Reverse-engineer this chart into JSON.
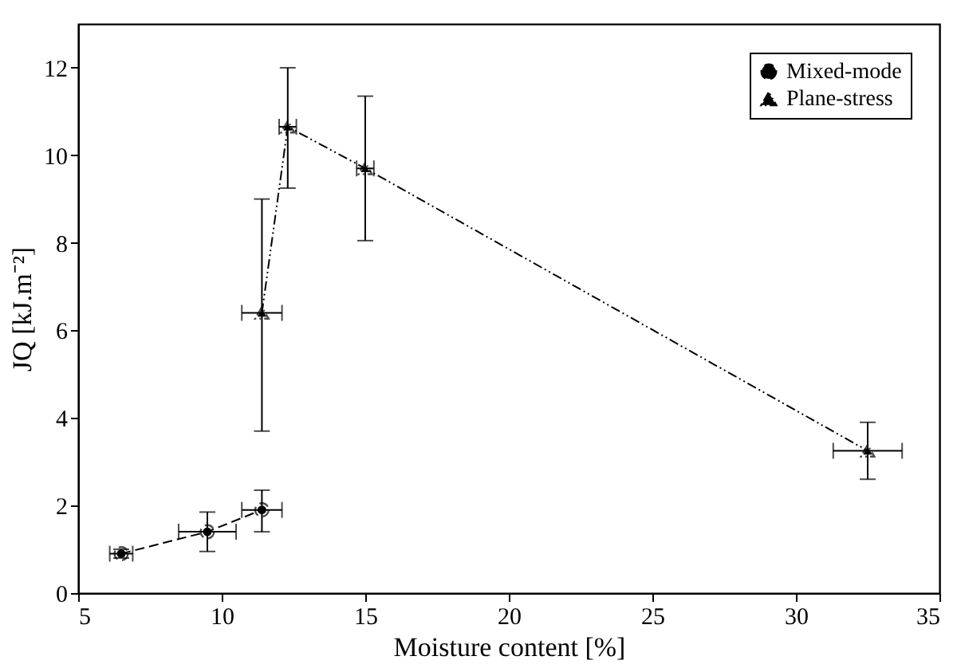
{
  "chart_data": {
    "type": "line",
    "xlabel": "Moisture content [%]",
    "ylabel": "JQ [kJ.m⁻²]",
    "xlim": [
      5,
      35
    ],
    "xticks": [
      5,
      10,
      15,
      20,
      25,
      30,
      35
    ],
    "ylim": [
      0,
      13
    ],
    "yticks": [
      0,
      2,
      4,
      6,
      8,
      10,
      12
    ],
    "grid": false,
    "legend": "top right",
    "series": [
      {
        "name": "Mixed-mode",
        "color": "#000000",
        "marker": "circle",
        "line_style": "dashed",
        "x": [
          6.5,
          9.5,
          11.4
        ],
        "values": [
          0.9,
          1.4,
          1.9
        ],
        "errors": [
          [
            0.8,
            1.0
          ],
          [
            0.95,
            1.85
          ],
          [
            1.4,
            2.35
          ]
        ],
        "xerrors": [
          [
            6.1,
            6.9
          ],
          [
            8.5,
            10.5
          ],
          [
            10.7,
            12.1
          ]
        ]
      },
      {
        "name": "Plane-stress",
        "color": "#000000",
        "marker": "triangle",
        "line_style": "dotted",
        "x": [
          11.4,
          12.3,
          15,
          32.5
        ],
        "values": [
          6.4,
          10.65,
          9.7,
          3.25
        ],
        "errors": [
          [
            3.7,
            9.0
          ],
          [
            9.25,
            12.0
          ],
          [
            8.05,
            11.35
          ],
          [
            2.6,
            3.9
          ]
        ],
        "xerrors": [
          [
            10.7,
            12.1
          ],
          [
            12.0,
            12.6
          ],
          [
            14.7,
            15.3
          ],
          [
            31.3,
            33.7
          ]
        ]
      }
    ]
  }
}
